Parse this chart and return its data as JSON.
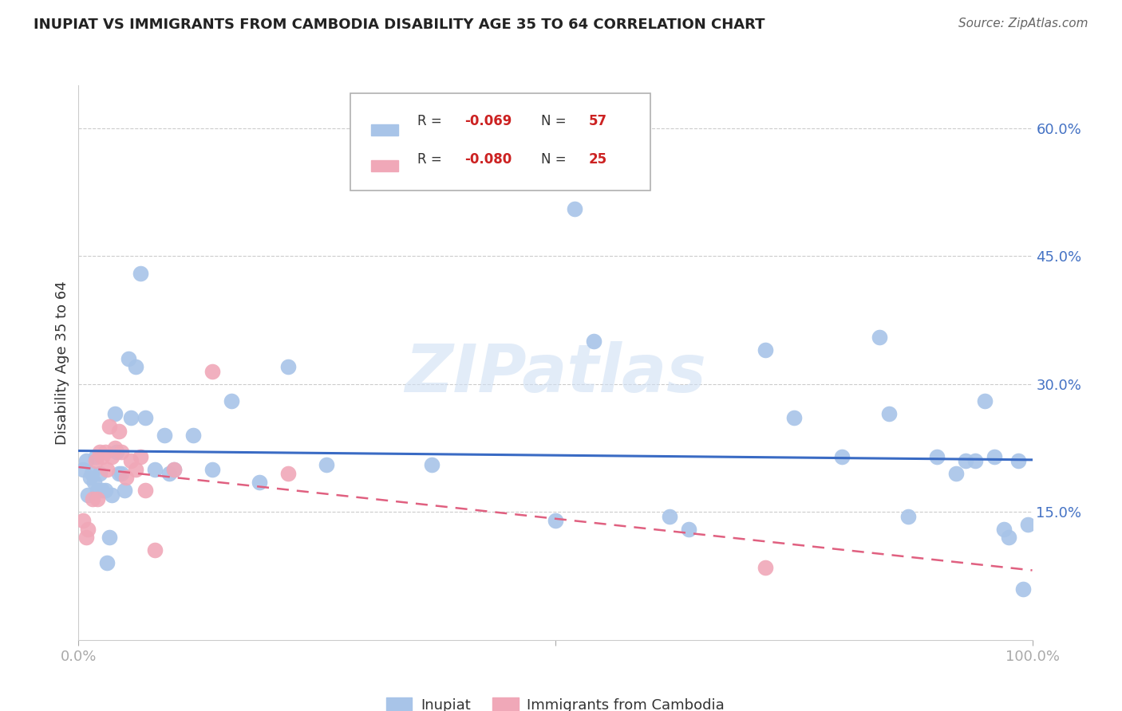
{
  "title": "INUPIAT VS IMMIGRANTS FROM CAMBODIA DISABILITY AGE 35 TO 64 CORRELATION CHART",
  "source": "Source: ZipAtlas.com",
  "ylabel": "Disability Age 35 to 64",
  "xlim": [
    0.0,
    1.0
  ],
  "ylim": [
    0.0,
    0.65
  ],
  "xticks": [
    0.0,
    0.5,
    1.0
  ],
  "xticklabels": [
    "0.0%",
    "",
    "100.0%"
  ],
  "yticks": [
    0.15,
    0.3,
    0.45,
    0.6
  ],
  "yticklabels": [
    "15.0%",
    "30.0%",
    "45.0%",
    "60.0%"
  ],
  "watermark": "ZIPatlas",
  "inupiat_color": "#a8c4e8",
  "cambodia_color": "#f0a8b8",
  "inupiat_line_color": "#3a6bc4",
  "cambodia_line_color": "#e06080",
  "legend_r1": "-0.069",
  "legend_n1": "57",
  "legend_r2": "-0.080",
  "legend_n2": "25",
  "inupiat_x": [
    0.005,
    0.008,
    0.01,
    0.012,
    0.014,
    0.016,
    0.018,
    0.02,
    0.022,
    0.025,
    0.028,
    0.03,
    0.032,
    0.035,
    0.038,
    0.04,
    0.042,
    0.045,
    0.048,
    0.052,
    0.055,
    0.06,
    0.065,
    0.07,
    0.08,
    0.09,
    0.095,
    0.1,
    0.12,
    0.14,
    0.16,
    0.19,
    0.22,
    0.26,
    0.37,
    0.5,
    0.52,
    0.54,
    0.62,
    0.64,
    0.72,
    0.75,
    0.8,
    0.84,
    0.85,
    0.87,
    0.9,
    0.92,
    0.93,
    0.94,
    0.95,
    0.96,
    0.97,
    0.975,
    0.985,
    0.99,
    0.995
  ],
  "inupiat_y": [
    0.2,
    0.21,
    0.17,
    0.19,
    0.195,
    0.185,
    0.215,
    0.175,
    0.195,
    0.175,
    0.175,
    0.09,
    0.12,
    0.17,
    0.265,
    0.22,
    0.195,
    0.195,
    0.175,
    0.33,
    0.26,
    0.32,
    0.43,
    0.26,
    0.2,
    0.24,
    0.195,
    0.2,
    0.24,
    0.2,
    0.28,
    0.185,
    0.32,
    0.205,
    0.205,
    0.14,
    0.505,
    0.35,
    0.145,
    0.13,
    0.34,
    0.26,
    0.215,
    0.355,
    0.265,
    0.145,
    0.215,
    0.195,
    0.21,
    0.21,
    0.28,
    0.215,
    0.13,
    0.12,
    0.21,
    0.06,
    0.135
  ],
  "cambodia_x": [
    0.005,
    0.008,
    0.01,
    0.015,
    0.018,
    0.02,
    0.022,
    0.025,
    0.028,
    0.03,
    0.032,
    0.035,
    0.038,
    0.042,
    0.045,
    0.05,
    0.055,
    0.06,
    0.065,
    0.07,
    0.08,
    0.1,
    0.14,
    0.22,
    0.72
  ],
  "cambodia_y": [
    0.14,
    0.12,
    0.13,
    0.165,
    0.21,
    0.165,
    0.22,
    0.215,
    0.22,
    0.2,
    0.25,
    0.215,
    0.225,
    0.245,
    0.22,
    0.19,
    0.21,
    0.2,
    0.215,
    0.175,
    0.105,
    0.2,
    0.315,
    0.195,
    0.085
  ]
}
